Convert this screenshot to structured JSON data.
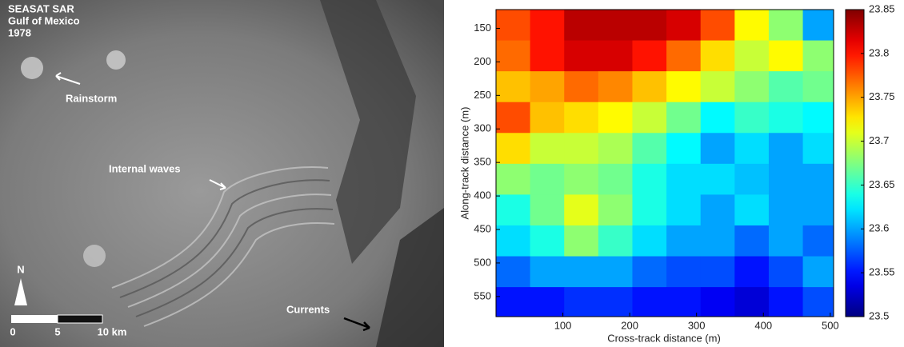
{
  "image_panel": {
    "title_lines": [
      "SEASAT SAR",
      "Gulf of Mexico",
      "1978"
    ],
    "annotations": [
      "Rainstorm",
      "Internal waves",
      "Currents"
    ],
    "north": "N",
    "scale_labels": [
      "0",
      "5",
      "10 km"
    ]
  },
  "chart_data": {
    "type": "heatmap",
    "xlabel": "Cross-track distance (m)",
    "ylabel": "Along-track distance (m)",
    "xbins": [
      0,
      51,
      102,
      153,
      204,
      255,
      306,
      357,
      408,
      459,
      505
    ],
    "ybins": [
      122,
      168,
      214,
      260,
      306,
      352,
      398,
      444,
      490,
      536,
      580
    ],
    "z": [
      [
        23.78,
        23.8,
        23.83,
        23.83,
        23.83,
        23.82,
        23.78,
        23.72,
        23.68,
        23.6
      ],
      [
        23.77,
        23.8,
        23.82,
        23.82,
        23.8,
        23.77,
        23.73,
        23.7,
        23.72,
        23.68
      ],
      [
        23.74,
        23.75,
        23.77,
        23.76,
        23.74,
        23.72,
        23.7,
        23.68,
        23.66,
        23.67
      ],
      [
        23.78,
        23.74,
        23.73,
        23.72,
        23.7,
        23.67,
        23.63,
        23.65,
        23.64,
        23.63
      ],
      [
        23.73,
        23.7,
        23.7,
        23.69,
        23.66,
        23.63,
        23.6,
        23.62,
        23.6,
        23.62
      ],
      [
        23.68,
        23.67,
        23.68,
        23.67,
        23.64,
        23.62,
        23.62,
        23.61,
        23.6,
        23.6
      ],
      [
        23.64,
        23.67,
        23.71,
        23.68,
        23.64,
        23.62,
        23.6,
        23.62,
        23.6,
        23.6
      ],
      [
        23.62,
        23.64,
        23.68,
        23.65,
        23.62,
        23.6,
        23.6,
        23.58,
        23.6,
        23.58
      ],
      [
        23.58,
        23.6,
        23.6,
        23.6,
        23.58,
        23.57,
        23.57,
        23.55,
        23.57,
        23.6
      ],
      [
        23.55,
        23.55,
        23.56,
        23.56,
        23.55,
        23.55,
        23.54,
        23.53,
        23.55,
        23.57
      ]
    ],
    "xlim": [
      0,
      505
    ],
    "xticks": [
      100,
      200,
      300,
      400,
      500
    ],
    "ylim": [
      122,
      580
    ],
    "yticks": [
      150,
      200,
      250,
      300,
      350,
      400,
      450,
      500,
      550
    ],
    "y_reversed": true,
    "colormap": "jet",
    "clim": [
      23.5,
      23.85
    ],
    "cticks": [
      23.5,
      23.55,
      23.6,
      23.65,
      23.7,
      23.75,
      23.8,
      23.85
    ]
  }
}
